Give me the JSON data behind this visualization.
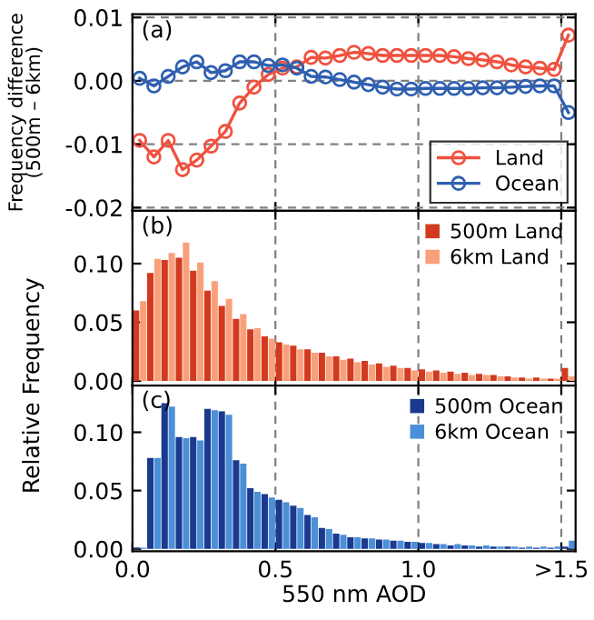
{
  "chart_data": [
    {
      "type": "line",
      "ylabel": "Frequency difference\n(500m – 6km)",
      "annotations": [
        "(a)"
      ],
      "x": [
        0.025,
        0.075,
        0.125,
        0.175,
        0.225,
        0.275,
        0.325,
        0.375,
        0.425,
        0.475,
        0.525,
        0.575,
        0.625,
        0.675,
        0.725,
        0.775,
        0.825,
        0.875,
        0.925,
        0.975,
        1.025,
        1.075,
        1.125,
        1.175,
        1.225,
        1.275,
        1.325,
        1.375,
        1.425,
        1.475,
        1.525
      ],
      "series": [
        {
          "name": "Land",
          "color": "#f0513e",
          "values": [
            -0.0094,
            -0.012,
            -0.0094,
            -0.014,
            -0.0125,
            -0.0103,
            -0.008,
            -0.0035,
            -0.001,
            0.001,
            0.002,
            0.0022,
            0.0037,
            0.0036,
            0.004,
            0.0045,
            0.0043,
            0.004,
            0.004,
            0.004,
            0.004,
            0.004,
            0.0038,
            0.0035,
            0.0033,
            0.003,
            0.0025,
            0.0022,
            0.002,
            0.0018,
            0.0072
          ]
        },
        {
          "name": "Ocean",
          "color": "#2e5fb0",
          "values": [
            0.0004,
            -0.0008,
            0.0007,
            0.0022,
            0.003,
            0.0013,
            0.0016,
            0.003,
            0.003,
            0.0024,
            0.0025,
            0.002,
            0.0007,
            0.0006,
            0.0002,
            -0.0002,
            -0.0006,
            -0.001,
            -0.0013,
            -0.0013,
            -0.0012,
            -0.0012,
            -0.0012,
            -0.0012,
            -0.0011,
            -0.0011,
            -0.001,
            -0.0009,
            -0.0008,
            -0.0008,
            -0.005
          ]
        }
      ],
      "marker": "circle",
      "line_style": "solid",
      "xlim": [
        0,
        1.55
      ],
      "xticks": [
        0,
        0.5,
        1.0,
        1.5
      ],
      "ylim": [
        -0.0205,
        0.0105
      ],
      "yticks": [
        {
          "value": 0.01,
          "label": "0.01"
        },
        {
          "value": 0,
          "label": "0.00"
        },
        {
          "value": -0.01,
          "label": "-0.01"
        },
        {
          "value": -0.02,
          "label": "-0.02"
        }
      ],
      "grid": true,
      "legend": "bottom right",
      "tick_labels": "y"
    },
    {
      "type": "bar",
      "annotations": [
        "(b)"
      ],
      "x": [
        0.025,
        0.075,
        0.125,
        0.175,
        0.225,
        0.275,
        0.325,
        0.375,
        0.425,
        0.475,
        0.525,
        0.575,
        0.625,
        0.675,
        0.725,
        0.775,
        0.825,
        0.875,
        0.925,
        0.975,
        1.025,
        1.075,
        1.125,
        1.175,
        1.225,
        1.275,
        1.325,
        1.375,
        1.425,
        1.475,
        1.525
      ],
      "series": [
        {
          "name": "500m Land",
          "color": "#d23a1f",
          "values": [
            0.06,
            0.092,
            0.103,
            0.105,
            0.094,
            0.077,
            0.064,
            0.053,
            0.044,
            0.038,
            0.033,
            0.03,
            0.027,
            0.024,
            0.021,
            0.019,
            0.017,
            0.015,
            0.013,
            0.011,
            0.01,
            0.009,
            0.008,
            0.007,
            0.006,
            0.005,
            0.004,
            0.003,
            0.003,
            0.002,
            0.011
          ]
        },
        {
          "name": "6km Land",
          "color": "#f9a07a",
          "values": [
            0.068,
            0.104,
            0.109,
            0.118,
            0.101,
            0.085,
            0.07,
            0.057,
            0.045,
            0.036,
            0.031,
            0.027,
            0.024,
            0.021,
            0.018,
            0.016,
            0.014,
            0.012,
            0.011,
            0.009,
            0.008,
            0.007,
            0.006,
            0.005,
            0.005,
            0.004,
            0.003,
            0.002,
            0.002,
            0.002,
            0.004
          ]
        }
      ],
      "xlim": [
        0,
        1.55
      ],
      "xticks": [
        0,
        0.5,
        1.0,
        1.5
      ],
      "ylim": [
        -0.004,
        0.145
      ],
      "yticks": [
        {
          "value": 0,
          "label": "0.00"
        },
        {
          "value": 0.05,
          "label": "0.05"
        },
        {
          "value": 0.1,
          "label": "0.10"
        }
      ],
      "grid": "x",
      "legend": "top right",
      "tick_labels": "y"
    },
    {
      "type": "bar",
      "annotations": [
        "(c)"
      ],
      "xlabel": "550 nm AOD",
      "ylabel": "Relative Frequency",
      "x": [
        0.025,
        0.075,
        0.125,
        0.175,
        0.225,
        0.275,
        0.325,
        0.375,
        0.425,
        0.475,
        0.525,
        0.575,
        0.625,
        0.675,
        0.725,
        0.775,
        0.825,
        0.875,
        0.925,
        0.975,
        1.025,
        1.075,
        1.125,
        1.175,
        1.225,
        1.275,
        1.325,
        1.375,
        1.425,
        1.475,
        1.525
      ],
      "series": [
        {
          "name": "500m Ocean",
          "color": "#1a3a8f",
          "values": [
            0.001,
            0.078,
            0.125,
            0.096,
            0.096,
            0.12,
            0.118,
            0.076,
            0.052,
            0.047,
            0.042,
            0.037,
            0.029,
            0.018,
            0.013,
            0.01,
            0.009,
            0.008,
            0.007,
            0.006,
            0.005,
            0.004,
            0.003,
            0.003,
            0.002,
            0.002,
            0.002,
            0.001,
            0.001,
            0.001,
            0.002
          ]
        },
        {
          "name": "6km Ocean",
          "color": "#4a8fd8",
          "values": [
            0.001,
            0.078,
            0.122,
            0.095,
            0.093,
            0.119,
            0.115,
            0.073,
            0.049,
            0.044,
            0.04,
            0.035,
            0.027,
            0.017,
            0.012,
            0.01,
            0.009,
            0.008,
            0.007,
            0.006,
            0.005,
            0.004,
            0.004,
            0.003,
            0.003,
            0.002,
            0.002,
            0.002,
            0.002,
            0.002,
            0.007
          ]
        }
      ],
      "xlim": [
        0,
        1.55
      ],
      "xticks": [
        {
          "value": 0,
          "label": "0.0"
        },
        0.5,
        {
          "value": 1.0,
          "label": "1.0"
        },
        {
          "value": 1.5,
          "label": ">1.5"
        }
      ],
      "ylim": [
        -0.002,
        0.14
      ],
      "yticks": [
        {
          "value": 0,
          "label": "0.00"
        },
        {
          "value": 0.05,
          "label": "0.05"
        },
        {
          "value": 0.1,
          "label": "0.10"
        }
      ],
      "grid": "x",
      "legend": "top right"
    }
  ]
}
